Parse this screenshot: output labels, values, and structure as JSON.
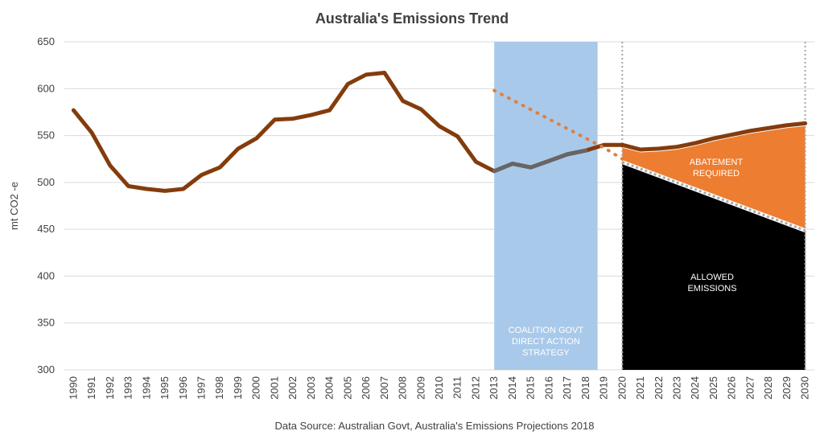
{
  "chart_data": {
    "type": "line",
    "title": "Australia's Emissions Trend",
    "xlabel": "",
    "ylabel": "mt CO2 -e",
    "source": "Data Source: Australian Govt, Australia's Emissions Projections 2018",
    "ylim": [
      300,
      650
    ],
    "yticks": [
      300,
      350,
      400,
      450,
      500,
      550,
      600,
      650
    ],
    "grid": true,
    "categories": [
      "1990",
      "1991",
      "1992",
      "1993",
      "1994",
      "1995",
      "1996",
      "1997",
      "1998",
      "1999",
      "2000",
      "2001",
      "2002",
      "2003",
      "2004",
      "2005",
      "2006",
      "2007",
      "2008",
      "2009",
      "2010",
      "2011",
      "2012",
      "2013",
      "2014",
      "2015",
      "2016",
      "2017",
      "2018",
      "2019",
      "2020",
      "2021",
      "2022",
      "2023",
      "2024",
      "2025",
      "2026",
      "2027",
      "2028",
      "2029",
      "2030"
    ],
    "series": [
      {
        "values": [
          577,
          553,
          518,
          496,
          493,
          491,
          493,
          508,
          516,
          536,
          547,
          567,
          568,
          572,
          577,
          605,
          615,
          617,
          587,
          578,
          560,
          549,
          522,
          512,
          520,
          516,
          523,
          530,
          534,
          540,
          540,
          535,
          536,
          538,
          542,
          547,
          551,
          555,
          558,
          561,
          563
        ],
        "color": "#843c0c"
      },
      {
        "values": [
          null,
          null,
          null,
          null,
          null,
          null,
          null,
          null,
          null,
          null,
          null,
          null,
          null,
          null,
          null,
          null,
          null,
          null,
          null,
          null,
          null,
          null,
          null,
          512,
          520,
          516,
          523,
          530,
          534,
          null,
          null,
          null,
          null,
          null,
          null,
          null,
          null,
          null,
          null,
          null,
          null
        ],
        "color": "#666666"
      }
    ],
    "trajectory": {
      "x": [
        "2013",
        "2019",
        "2020"
      ],
      "values": [
        598,
        537,
        525
      ],
      "color": "#e07f3c",
      "style": "dotted"
    },
    "target": {
      "x": [
        "2020",
        "2030"
      ],
      "values": [
        520,
        447
      ]
    },
    "regions": [
      {
        "label": "COALITION GOVT DIRECT ACTION STRATEGY",
        "from": "2013",
        "to": "2018",
        "color": "#a9c9ea",
        "text_color": "#ffffff"
      },
      {
        "label": "ABATEMENT REQUIRED",
        "from": "2020",
        "to": "2030",
        "color": "#ed7d31",
        "text_color": "#ffffff"
      },
      {
        "label": "ALLOWED EMISSIONS",
        "from": "2020",
        "to": "2030",
        "color": "#000000",
        "text_color": "#ffffff"
      }
    ]
  }
}
